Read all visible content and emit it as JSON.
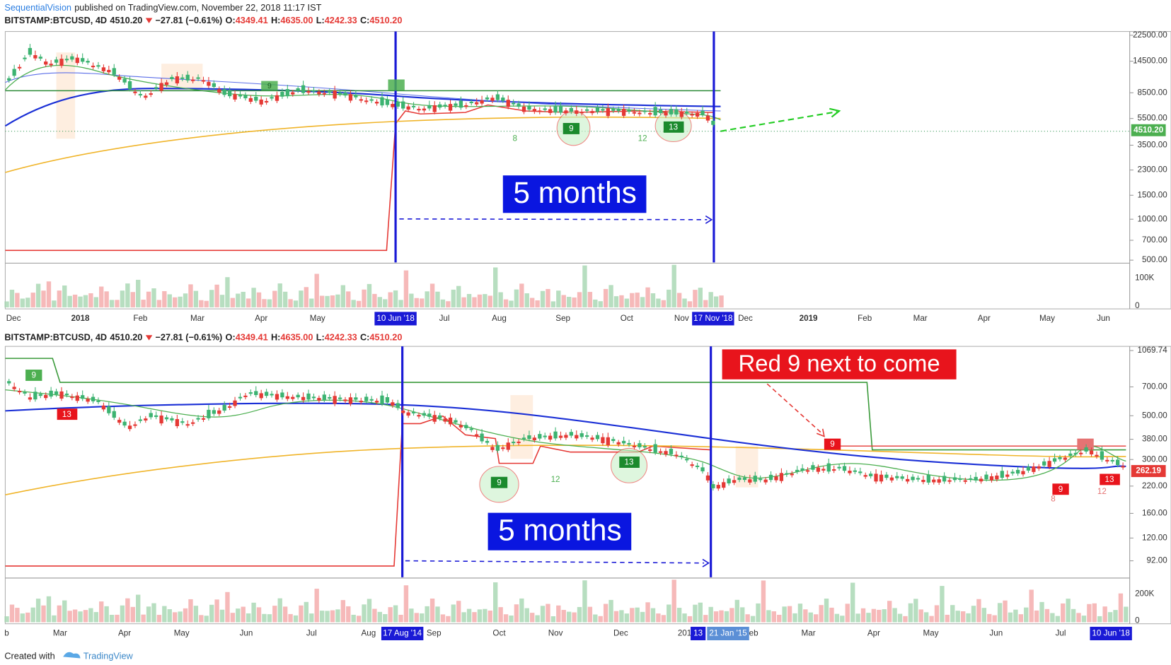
{
  "header": {
    "author": "SequentialVision",
    "published": "published on TradingView.com, November 22, 2018 11:17 IST"
  },
  "panels": [
    {
      "symbol": "BITSTAMP:BTCUSD, 4D",
      "last": "4510.20",
      "change": "−27.81 (−0.61%)",
      "ohlc": [
        {
          "label": "O:",
          "value": "4349.41"
        },
        {
          "label": "H:",
          "value": "4635.00"
        },
        {
          "label": "L:",
          "value": "4242.33"
        },
        {
          "label": "C:",
          "value": "4510.20"
        }
      ],
      "price_axis": [
        "22500.00",
        "14500.00",
        "8500.00",
        "5500.00",
        "3500.00",
        "2300.00",
        "1500.00",
        "1000.00",
        "700.00",
        "500.00"
      ],
      "price_tag": "4510.20",
      "volume_axis": [
        "100K",
        "0"
      ],
      "time_axis": [
        "Dec",
        "2018",
        "Feb",
        "Mar",
        "Apr",
        "May",
        "10 Jun '18",
        "Jul",
        "Aug",
        "Sep",
        "Oct",
        "Nov",
        "17 Nov '18",
        "Dec",
        "2019",
        "Feb",
        "Mar",
        "Apr",
        "May",
        "Jun"
      ],
      "annotations": [
        "5 months"
      ],
      "setup_counts": [
        "9",
        "13",
        "8",
        "12",
        "9"
      ]
    },
    {
      "symbol": "BITSTAMP:BTCUSD, 4D",
      "last": "4510.20",
      "change": "−27.81 (−0.61%)",
      "ohlc": [
        {
          "label": "O:",
          "value": "4349.41"
        },
        {
          "label": "H:",
          "value": "4635.00"
        },
        {
          "label": "L:",
          "value": "4242.33"
        },
        {
          "label": "C:",
          "value": "4510.20"
        }
      ],
      "price_axis": [
        "1069.74",
        "700.00",
        "500.00",
        "380.00",
        "300.00",
        "220.00",
        "160.00",
        "120.00",
        "92.00"
      ],
      "price_tag": "262.19",
      "volume_axis": [
        "200K",
        "0"
      ],
      "time_axis": [
        "b",
        "Mar",
        "Apr",
        "May",
        "Jun",
        "Jul",
        "Aug",
        "17 Aug '14",
        "Sep",
        "Oct",
        "Nov",
        "Dec",
        "201",
        "13",
        "21 Jan '15",
        "eb",
        "Mar",
        "Apr",
        "May",
        "Jun",
        "Jul",
        "10 Jun '18"
      ],
      "annotations": [
        "5 months",
        "Red 9 next to come"
      ],
      "setup_counts": [
        "9",
        "13",
        "9",
        "13",
        "12",
        "9",
        "13",
        "9",
        "8",
        "12"
      ]
    }
  ],
  "footer": {
    "created": "Created with",
    "brand": "TradingView"
  }
}
